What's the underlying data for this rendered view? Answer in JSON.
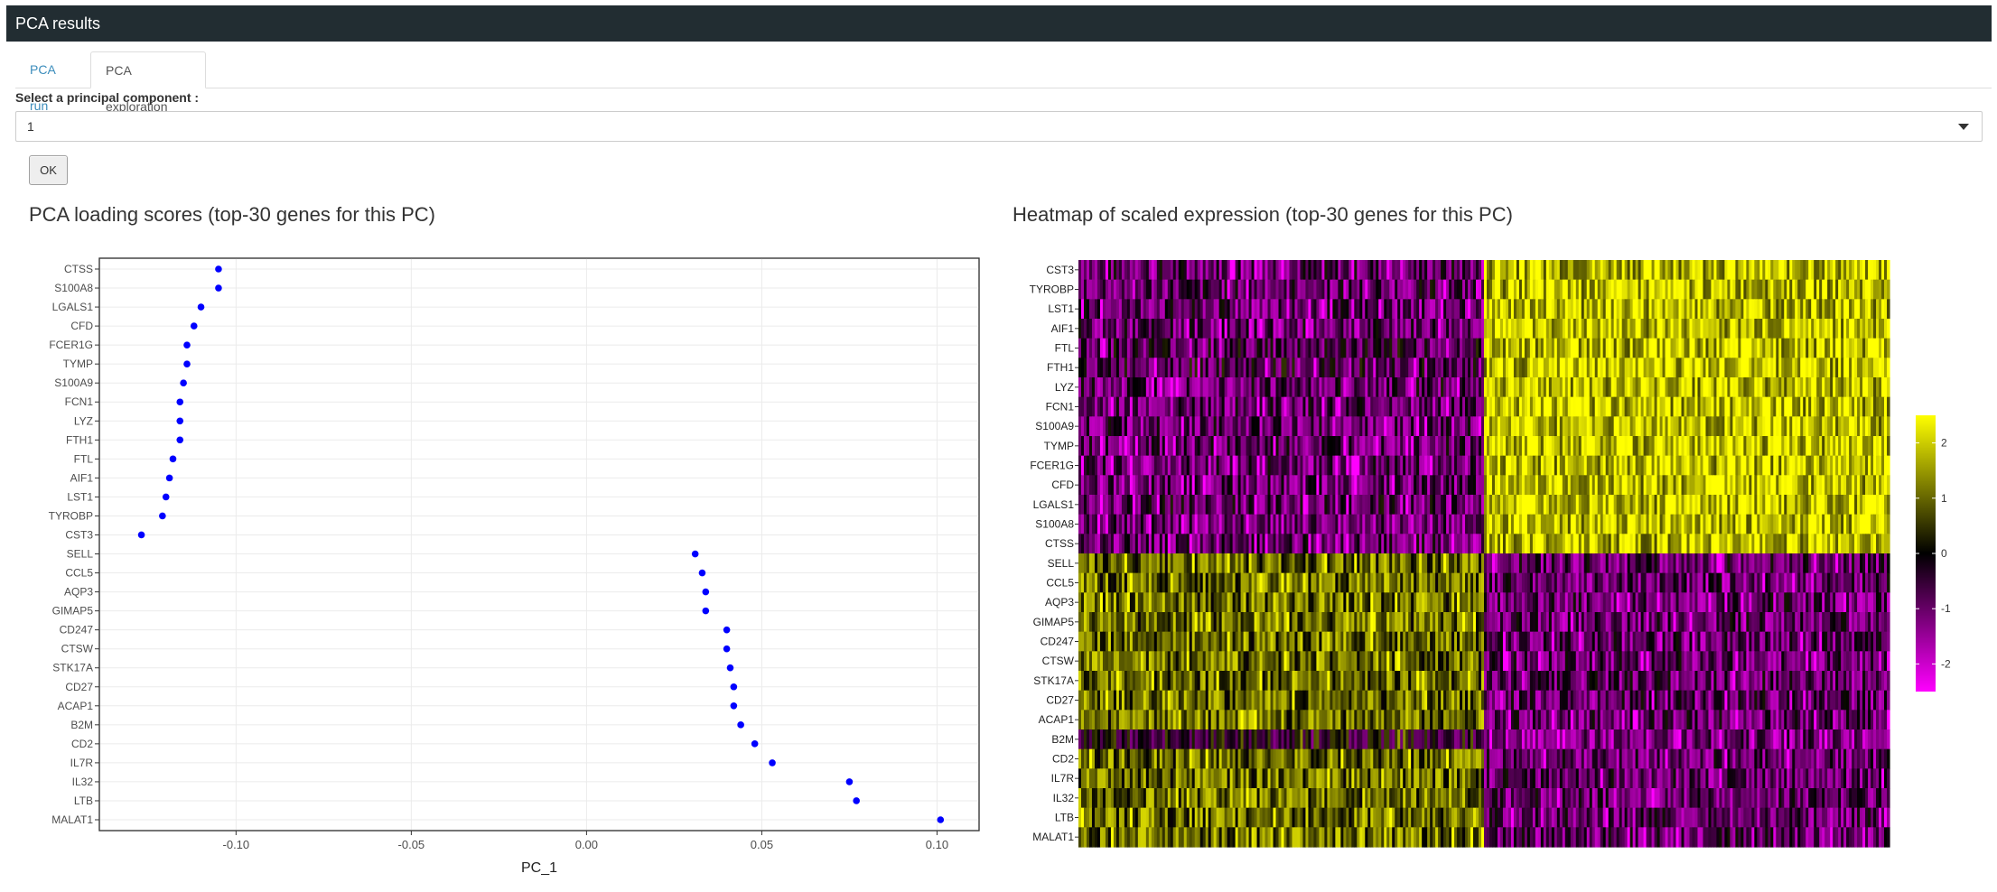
{
  "header": {
    "title": "PCA results"
  },
  "tabs": [
    {
      "label": "PCA run",
      "active": false
    },
    {
      "label": "PCA exploration",
      "active": true
    }
  ],
  "pc_select": {
    "label": "Select a principal component :",
    "value": "1"
  },
  "ok_button": {
    "label": "OK"
  },
  "loading_plot": {
    "title": "PCA loading scores (top-30 genes for this PC)"
  },
  "heatmap_plot": {
    "title": "Heatmap of scaled expression (top-30 genes for this PC)"
  },
  "chart_data": [
    {
      "type": "scatter",
      "xlabel": "PC_1",
      "ylabel": "",
      "xlim": [
        -0.139,
        0.112
      ],
      "xticks": [
        -0.1,
        -0.05,
        0.0,
        0.05,
        0.1
      ],
      "xtick_labels": [
        "-0.10",
        "-0.05",
        "0.00",
        "0.05",
        "0.10"
      ],
      "grid": true,
      "point_color": "#0000ff",
      "genes": [
        "CTSS",
        "S100A8",
        "LGALS1",
        "CFD",
        "FCER1G",
        "TYMP",
        "S100A9",
        "FCN1",
        "LYZ",
        "FTH1",
        "FTL",
        "AIF1",
        "LST1",
        "TYROBP",
        "CST3",
        "SELL",
        "CCL5",
        "AQP3",
        "GIMAP5",
        "CD247",
        "CTSW",
        "STK17A",
        "CD27",
        "ACAP1",
        "B2M",
        "CD2",
        "IL7R",
        "IL32",
        "LTB",
        "MALAT1"
      ],
      "values": [
        -0.105,
        -0.105,
        -0.11,
        -0.112,
        -0.114,
        -0.114,
        -0.115,
        -0.116,
        -0.116,
        -0.116,
        -0.118,
        -0.119,
        -0.12,
        -0.121,
        -0.127,
        0.031,
        0.033,
        0.034,
        0.034,
        0.04,
        0.04,
        0.041,
        0.042,
        0.042,
        0.044,
        0.048,
        0.053,
        0.075,
        0.077,
        0.101
      ]
    },
    {
      "type": "heatmap",
      "genes": [
        "CST3",
        "TYROBP",
        "LST1",
        "AIF1",
        "FTL",
        "FTH1",
        "LYZ",
        "FCN1",
        "S100A9",
        "TYMP",
        "FCER1G",
        "CFD",
        "LGALS1",
        "S100A8",
        "CTSS",
        "SELL",
        "CCL5",
        "AQP3",
        "GIMAP5",
        "CD247",
        "CTSW",
        "STK17A",
        "CD27",
        "ACAP1",
        "B2M",
        "CD2",
        "IL7R",
        "IL32",
        "LTB",
        "MALAT1"
      ],
      "group_split": 0.5,
      "colorbar": {
        "ticks": [
          2,
          1,
          0,
          -1,
          -2
        ],
        "range": [
          -2.5,
          2.5
        ],
        "low": "#ff00ff",
        "mid": "#000000",
        "high": "#ffff00"
      }
    }
  ]
}
